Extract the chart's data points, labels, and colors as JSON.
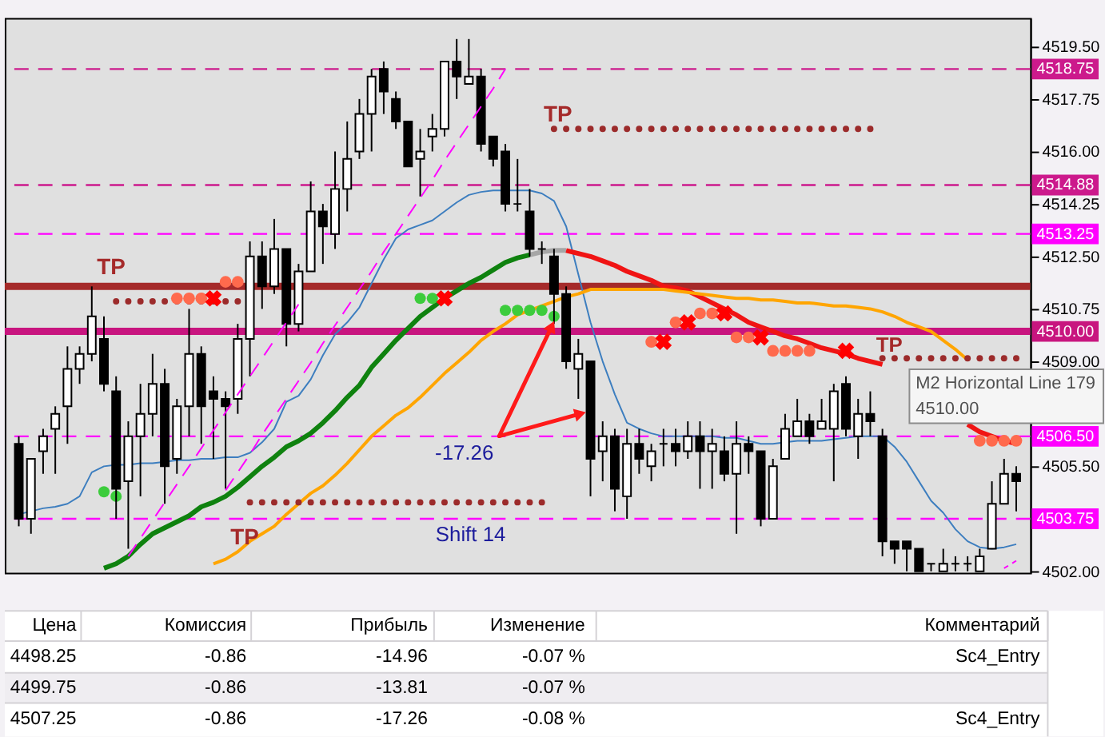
{
  "chart_data": [
    {
      "type": "candlestick",
      "categories": [
        null,
        null,
        null,
        null,
        null,
        null,
        null,
        null,
        null,
        null,
        null,
        null,
        null,
        null,
        null,
        null,
        null,
        null,
        null,
        null,
        null,
        null,
        null,
        null,
        null,
        null,
        null,
        null,
        null,
        null,
        null,
        null,
        null,
        null,
        null,
        null,
        null,
        null,
        null,
        null,
        null,
        null,
        null,
        null,
        null,
        null,
        null,
        null,
        null,
        null,
        null,
        null,
        null,
        null,
        null,
        null,
        null,
        null,
        null,
        null,
        null,
        null,
        null,
        null,
        null,
        null,
        null,
        null,
        null,
        null,
        null,
        null,
        null,
        null,
        null,
        null,
        null,
        null,
        null,
        null,
        null,
        null,
        null
      ],
      "ohlc": [
        [
          4506.25,
          4506.5,
          4503.5,
          4503.75
        ],
        [
          4503.75,
          4505.75,
          4503.25,
          4505.75
        ],
        [
          4506.0,
          4506.75,
          4505.25,
          4506.5
        ],
        [
          4506.75,
          4507.5,
          4505.25,
          4507.25
        ],
        [
          4507.5,
          4509.5,
          4506.25,
          4508.75
        ],
        [
          4508.75,
          4509.5,
          4508.25,
          4509.25
        ],
        [
          4509.25,
          4511.5,
          4509.0,
          4510.5
        ],
        [
          4509.75,
          4510.5,
          4508.0,
          4508.25
        ],
        [
          4508.0,
          4508.5,
          4503.75,
          4504.75
        ],
        [
          4505.0,
          4507.0,
          4502.75,
          4506.5
        ],
        [
          4506.5,
          4508.25,
          4504.5,
          4507.25
        ],
        [
          4507.25,
          4509.25,
          4506.5,
          4508.25
        ],
        [
          4508.25,
          4508.75,
          4504.25,
          4505.5
        ],
        [
          4505.75,
          4507.75,
          4505.25,
          4507.5
        ],
        [
          4507.5,
          4510.75,
          4506.5,
          4509.25
        ],
        [
          4509.25,
          4509.5,
          4506.25,
          4507.5
        ],
        [
          4508.0,
          4508.5,
          4505.75,
          4507.75
        ],
        [
          4507.75,
          4508.0,
          4504.75,
          4507.5
        ],
        [
          4507.75,
          4510.25,
          4507.25,
          4509.75
        ],
        [
          4509.75,
          4513.0,
          4508.5,
          4512.5
        ],
        [
          4512.5,
          4513.0,
          4510.75,
          4511.5
        ],
        [
          4511.5,
          4513.75,
          4511.25,
          4512.75
        ],
        [
          4512.75,
          4512.75,
          4509.5,
          4510.25
        ],
        [
          4510.25,
          4512.25,
          4510.0,
          4512.0
        ],
        [
          4512.0,
          4515.0,
          4512.0,
          4514.0
        ],
        [
          4514.0,
          4514.25,
          4512.25,
          4513.5
        ],
        [
          4513.25,
          4516.0,
          4512.75,
          4514.75
        ],
        [
          4514.75,
          4517.0,
          4514.0,
          4515.75
        ],
        [
          4516.0,
          4517.75,
          4515.75,
          4517.25
        ],
        [
          4517.25,
          4518.75,
          4516.0,
          4518.5
        ],
        [
          4518.75,
          4519.0,
          4517.25,
          4518.0
        ],
        [
          4517.75,
          4518.0,
          4516.75,
          4517.0
        ],
        [
          4517.0,
          4517.0,
          4515.5,
          4515.5
        ],
        [
          4515.75,
          4516.75,
          4514.5,
          4516.0
        ],
        [
          4516.5,
          4517.25,
          4516.0,
          4516.75
        ],
        [
          4516.75,
          4519.0,
          4516.5,
          4519.0
        ],
        [
          4519.0,
          4519.75,
          4517.75,
          4518.5
        ],
        [
          4518.25,
          4519.75,
          4518.25,
          4518.5
        ],
        [
          4518.5,
          4518.75,
          4516.0,
          4516.25
        ],
        [
          4516.5,
          4516.5,
          4515.5,
          4515.75
        ],
        [
          4516.0,
          4516.25,
          4514.0,
          4514.25
        ],
        [
          4514.25,
          4515.75,
          4514.0,
          4514.25
        ],
        [
          4514.0,
          4514.75,
          4512.5,
          4512.75
        ],
        [
          4512.75,
          4513.0,
          4512.25,
          4512.75
        ],
        [
          4512.5,
          4512.75,
          4510.25,
          4511.25
        ],
        [
          4511.25,
          4511.5,
          4508.75,
          4509.0
        ],
        [
          4508.75,
          4509.75,
          4507.75,
          4509.25
        ],
        [
          4509.0,
          4509.0,
          4504.5,
          4505.75
        ],
        [
          4506.0,
          4507.0,
          4505.0,
          4506.5
        ],
        [
          4506.5,
          4506.75,
          4504.0,
          4504.75
        ],
        [
          4504.5,
          4506.75,
          4503.75,
          4506.25
        ],
        [
          4506.25,
          4506.75,
          4505.25,
          4505.75
        ],
        [
          4505.5,
          4506.25,
          4505.0,
          4506.0
        ],
        [
          4506.25,
          4506.75,
          4505.5,
          4506.25
        ],
        [
          4506.25,
          4506.75,
          4505.5,
          4506.0
        ],
        [
          4506.0,
          4507.0,
          4505.75,
          4506.5
        ],
        [
          4506.5,
          4507.0,
          4504.75,
          4506.0
        ],
        [
          4506.0,
          4506.75,
          4504.75,
          4506.25
        ],
        [
          4506.0,
          4506.5,
          4505.0,
          4505.25
        ],
        [
          4505.25,
          4507.0,
          4503.25,
          4506.25
        ],
        [
          4506.25,
          4506.5,
          4505.25,
          4506.0
        ],
        [
          4506.0,
          4506.0,
          4503.5,
          4503.75
        ],
        [
          4503.75,
          4505.75,
          4503.75,
          4505.5
        ],
        [
          4505.75,
          4507.25,
          4505.75,
          4506.75
        ],
        [
          4506.5,
          4507.75,
          4506.5,
          4507.0
        ],
        [
          4507.0,
          4507.25,
          4506.25,
          4506.5
        ],
        [
          4506.75,
          4507.75,
          4506.75,
          4507.0
        ],
        [
          4506.75,
          4508.25,
          4505.0,
          4508.0
        ],
        [
          4508.25,
          4508.5,
          4506.5,
          4506.75
        ],
        [
          4506.5,
          4507.75,
          4505.75,
          4507.25
        ],
        [
          4507.25,
          4508.0,
          4506.5,
          4507.0
        ],
        [
          4506.5,
          4506.75,
          4502.5,
          4503.0
        ],
        [
          4503.0,
          4503.0,
          4502.25,
          4502.75
        ],
        [
          4503.0,
          4503.0,
          4502.0,
          4502.75
        ],
        [
          4502.75,
          4502.75,
          4502.0,
          4502.0
        ],
        [
          4502.25,
          4502.25,
          4502.0,
          4502.25
        ],
        [
          4502.0,
          4502.75,
          4502.0,
          4502.25
        ],
        [
          4502.25,
          4502.5,
          4502.0,
          4502.25
        ],
        [
          4502.25,
          4502.5,
          4502.0,
          4502.25
        ],
        [
          4502.0,
          4502.75,
          4502.0,
          4502.5
        ],
        [
          4502.75,
          4505.0,
          4502.75,
          4504.25
        ],
        [
          4504.25,
          4505.75,
          4504.25,
          4505.25
        ],
        [
          4505.25,
          4505.5,
          4504.0,
          4505.0
        ]
      ],
      "colors": [
        "#000000",
        "#ffffff",
        "#ffffff",
        "#ffffff",
        "#ffffff",
        "#ffffff",
        "#ffffff",
        "#000000",
        "#000000",
        "#ffffff",
        "#ffffff",
        "#ffffff",
        "#000000",
        "#ffffff",
        "#ffffff",
        "#000000",
        "#000000",
        "#000000",
        "#ffffff",
        "#ffffff",
        "#000000",
        "#ffffff",
        "#000000",
        "#ffffff",
        "#ffffff",
        "#000000",
        "#ffffff",
        "#ffffff",
        "#ffffff",
        "#ffffff",
        "#000000",
        "#000000",
        "#000000",
        "#ffffff",
        "#ffffff",
        "#ffffff",
        "#000000",
        "#ffffff",
        "#000000",
        "#000000",
        "#000000",
        "#000000",
        "#000000",
        "#000000",
        "#000000",
        "#000000",
        "#ffffff",
        "#000000",
        "#ffffff",
        "#000000",
        "#ffffff",
        "#000000",
        "#ffffff",
        "#000000",
        "#000000",
        "#ffffff",
        "#000000",
        "#ffffff",
        "#000000",
        "#ffffff",
        "#000000",
        "#000000",
        "#ffffff",
        "#ffffff",
        "#ffffff",
        "#000000",
        "#ffffff",
        "#ffffff",
        "#000000",
        "#ffffff",
        "#000000",
        "#000000",
        "#000000",
        "#000000",
        "#000000",
        "#000000",
        "#ffffff",
        "#000000",
        "#000000",
        "#ffffff",
        "#ffffff",
        "#ffffff",
        "#000000"
      ],
      "series": [
        {
          "type": "line",
          "color": "#3d7ebf",
          "values": [
            4503.9,
            4504.0,
            4504.1,
            4504.15,
            4504.25,
            4504.5,
            4505.3,
            4505.5,
            4505.55,
            4505.55,
            4505.6,
            4505.6,
            4505.65,
            4505.7,
            4505.7,
            4505.75,
            4505.75,
            4505.8,
            4505.8,
            4505.95,
            4506.3,
            4506.75,
            4507.65,
            4507.85,
            4508.4,
            4509.2,
            4509.9,
            4510.3,
            4510.8,
            4511.6,
            4512.4,
            4513.1,
            4513.4,
            4513.55,
            4513.7,
            4514.0,
            4514.3,
            4514.55,
            4514.65,
            4514.7,
            4514.7,
            4514.7,
            4514.7,
            4514.6,
            4514.35,
            4513.5,
            4511.9,
            4510.3,
            4509.0,
            4507.9,
            4506.95,
            4506.75,
            4506.6,
            4506.5,
            4506.5,
            4506.5,
            4506.5,
            4506.5,
            4506.45,
            4506.45,
            4506.35,
            4506.25,
            4506.25,
            4506.3,
            4506.35,
            4506.35,
            4506.35,
            4506.4,
            4506.45,
            4506.5,
            4506.5,
            4506.5,
            4506.15,
            4505.65,
            4505.0,
            4504.35,
            4503.95,
            4503.4,
            4503.0,
            4502.8,
            4502.75,
            4502.8,
            4502.9
          ]
        },
        {
          "type": "line",
          "color": "#0f820f",
          "values": [
            null,
            null,
            null,
            null,
            null,
            null,
            null,
            4502.1,
            4502.25,
            4502.5,
            4502.9,
            4503.25,
            4503.45,
            4503.65,
            4503.85,
            4504.15,
            4504.3,
            4504.5,
            4504.8,
            4505.15,
            4505.5,
            4505.8,
            4506.15,
            4506.35,
            4506.6,
            4506.95,
            4507.35,
            4507.8,
            4508.2,
            4508.8,
            4509.25,
            4509.7,
            4510.1,
            4510.5,
            4510.8,
            4511.1,
            4511.35,
            4511.6,
            4511.8,
            4512.05,
            4512.3,
            4512.45,
            4512.55,
            null,
            null,
            null,
            null,
            null,
            null,
            null,
            null,
            null,
            null,
            null,
            null,
            null,
            null,
            null,
            null,
            null,
            null,
            null,
            null,
            null,
            null,
            null,
            null,
            null,
            null,
            null,
            null,
            null,
            null,
            null,
            null,
            null,
            null,
            null,
            null,
            null,
            null,
            null,
            null
          ]
        },
        {
          "type": "line",
          "color": "#a6a6a6",
          "values": [
            null,
            null,
            null,
            null,
            null,
            null,
            null,
            null,
            null,
            null,
            null,
            null,
            null,
            null,
            null,
            null,
            null,
            null,
            null,
            null,
            null,
            null,
            null,
            null,
            null,
            null,
            null,
            null,
            null,
            null,
            null,
            null,
            null,
            null,
            null,
            null,
            null,
            null,
            null,
            null,
            null,
            null,
            4512.55,
            4512.65,
            4512.7,
            4512.7,
            null,
            null,
            null,
            null,
            null,
            null,
            null,
            null,
            null,
            null,
            null,
            null,
            null,
            null,
            null,
            null,
            null,
            null,
            null,
            null,
            null,
            null,
            null,
            null,
            null,
            null,
            null,
            null,
            null,
            null,
            null,
            null,
            null,
            null,
            null,
            null,
            null
          ]
        },
        {
          "type": "line",
          "color": "#f01414",
          "values": [
            null,
            null,
            null,
            null,
            null,
            null,
            null,
            null,
            null,
            null,
            null,
            null,
            null,
            null,
            null,
            null,
            null,
            null,
            null,
            null,
            null,
            null,
            null,
            null,
            null,
            null,
            null,
            null,
            null,
            null,
            null,
            null,
            null,
            null,
            null,
            null,
            null,
            null,
            null,
            null,
            null,
            null,
            null,
            null,
            null,
            4512.7,
            4512.6,
            4512.5,
            4512.35,
            4512.2,
            4512.0,
            4511.85,
            4511.7,
            4511.5,
            4511.45,
            4511.35,
            4511.15,
            4510.95,
            4510.75,
            4510.55,
            4510.3,
            4510.15,
            4510.0,
            4509.85,
            4509.75,
            4509.6,
            4509.45,
            4509.35,
            4509.25,
            4509.1,
            4509.0,
            4508.9,
            null,
            null,
            null,
            null,
            null,
            null,
            4506.9,
            4506.65,
            4506.5,
            4506.35,
            4506.25
          ]
        },
        {
          "type": "line",
          "color": "#ffa500",
          "values": [
            null,
            null,
            null,
            null,
            null,
            null,
            null,
            null,
            null,
            null,
            null,
            null,
            null,
            null,
            null,
            null,
            4502.25,
            4502.4,
            4502.65,
            4503.0,
            4503.25,
            4503.5,
            4503.9,
            4504.25,
            4504.6,
            4504.85,
            4505.2,
            4505.6,
            4506.05,
            4506.5,
            4506.85,
            4507.2,
            4507.45,
            4507.8,
            4508.2,
            4508.6,
            4508.95,
            4509.3,
            4509.7,
            4510.0,
            4510.25,
            4510.55,
            4510.7,
            4510.85,
            4511.0,
            4511.15,
            4511.25,
            4511.4,
            4511.4,
            4511.4,
            4511.4,
            4511.4,
            4511.4,
            4511.4,
            4511.35,
            4511.3,
            4511.25,
            4511.2,
            4511.15,
            4511.1,
            4511.1,
            4511.05,
            4511.05,
            4511.0,
            4510.95,
            4510.95,
            4510.9,
            4510.85,
            4510.85,
            4510.8,
            4510.75,
            4510.65,
            4510.5,
            4510.3,
            4510.15,
            4510.0,
            4509.7,
            4509.4,
            4509.05,
            null,
            null,
            null,
            null
          ]
        },
        {
          "type": "line",
          "color": "#ff00ff",
          "line_style": "dashed",
          "values": [
            null,
            null,
            null,
            null,
            null,
            null,
            null,
            null,
            null,
            4502.5,
            4503.1,
            4503.7,
            4504.3,
            4504.9,
            4505.5,
            4506.1,
            4506.7,
            4507.3,
            4507.9,
            4508.5,
            4509.1,
            4509.7,
            4510.3,
            4510.9,
            null,
            null,
            null,
            null,
            null,
            null,
            null,
            null,
            null,
            null,
            null,
            null,
            null,
            null,
            null,
            null,
            null,
            null,
            null,
            null,
            null,
            null,
            null,
            null,
            null,
            null,
            null,
            null,
            null,
            null,
            null,
            null,
            null,
            null,
            null,
            null,
            null,
            null,
            null,
            null,
            null,
            null,
            null,
            null,
            null,
            null,
            null,
            null,
            null,
            null,
            null,
            null,
            null,
            null,
            null,
            null,
            null,
            null,
            null
          ]
        },
        {
          "type": "line",
          "color": "#ff00ff",
          "line_style": "dashed",
          "values": [
            null,
            null,
            null,
            null,
            null,
            null,
            null,
            null,
            null,
            null,
            null,
            null,
            null,
            null,
            null,
            null,
            null,
            4504.7,
            4505.3,
            4505.9,
            4506.55,
            4507.15,
            4507.75,
            4508.35,
            4508.95,
            4509.6,
            4510.2,
            4510.8,
            4511.4,
            4512.0,
            4512.65,
            4513.25,
            4513.85,
            4514.45,
            4515.05,
            4515.7,
            4516.3,
            4516.9,
            4517.5,
            4518.1,
            4518.75,
            null,
            null,
            null,
            null,
            null,
            null,
            null,
            null,
            null,
            null,
            null,
            null,
            null,
            null,
            null,
            null,
            null,
            null,
            null,
            null,
            null,
            null,
            null,
            null,
            null,
            null,
            null,
            null,
            null,
            null,
            null,
            null,
            null,
            null,
            null,
            null,
            null,
            null,
            null,
            null,
            null,
            null
          ]
        },
        {
          "type": "line",
          "color": "#ff00ff",
          "line_style": "dashed",
          "values": [
            null,
            null,
            null,
            null,
            null,
            null,
            null,
            null,
            null,
            null,
            null,
            null,
            null,
            null,
            null,
            null,
            null,
            null,
            null,
            null,
            null,
            null,
            null,
            null,
            null,
            null,
            null,
            null,
            null,
            null,
            null,
            null,
            null,
            null,
            null,
            null,
            null,
            null,
            null,
            null,
            null,
            null,
            null,
            null,
            null,
            null,
            null,
            null,
            null,
            null,
            null,
            null,
            null,
            null,
            null,
            null,
            null,
            null,
            null,
            null,
            null,
            null,
            null,
            null,
            null,
            null,
            null,
            null,
            null,
            null,
            null,
            null,
            null,
            null,
            null,
            null,
            null,
            null,
            null,
            null,
            null,
            4502.1,
            4502.35
          ]
        },
        {
          "type": "scatter",
          "marker": "circle",
          "color": "#9c2b2b",
          "values": [
            null,
            null,
            null,
            null,
            null,
            null,
            null,
            null,
            4511.0,
            4511.0,
            4511.0,
            4511.0,
            4511.0,
            4511.0,
            4511.0,
            4511.0,
            4511.0,
            4511.0,
            4511.0,
            4504.3,
            4504.3,
            4504.3,
            4504.3,
            4504.3,
            4504.3,
            4504.3,
            4504.3,
            4504.3,
            4504.3,
            4504.3,
            4504.3,
            4504.3,
            4504.3,
            4504.3,
            4504.3,
            4504.3,
            4504.3,
            4504.3,
            4504.3,
            4504.3,
            4504.3,
            4504.3,
            4504.3,
            4504.3,
            4516.75,
            4516.75,
            4516.75,
            4516.75,
            4516.75,
            4516.75,
            4516.75,
            4516.75,
            4516.75,
            4516.75,
            4516.75,
            4516.75,
            4516.75,
            4516.75,
            4516.75,
            4516.75,
            4516.75,
            4516.75,
            4516.75,
            4516.75,
            4516.75,
            4516.75,
            4516.75,
            4516.75,
            4516.75,
            4516.75,
            4516.75,
            4509.1,
            4509.1,
            4509.1,
            4509.1,
            4509.1,
            4509.1,
            4509.1,
            4509.1,
            4509.1,
            4509.1,
            4509.1,
            4509.1
          ]
        },
        {
          "type": "scatter",
          "marker": "circle",
          "color": "#3ccc3c",
          "values": [
            null,
            null,
            null,
            null,
            null,
            null,
            null,
            4504.65,
            4504.5,
            null,
            null,
            null,
            null,
            null,
            null,
            null,
            null,
            null,
            null,
            null,
            null,
            null,
            null,
            null,
            null,
            null,
            null,
            null,
            null,
            null,
            null,
            null,
            null,
            4511.1,
            4511.1,
            null,
            null,
            null,
            null,
            null,
            4510.7,
            4510.7,
            4510.7,
            4510.7,
            4510.5,
            null,
            null,
            null,
            null,
            null,
            null,
            null,
            null,
            null,
            null,
            null,
            null,
            null,
            null,
            null,
            null,
            null,
            null,
            null,
            null,
            null,
            null,
            null,
            null,
            null,
            null,
            null,
            null,
            null,
            null,
            null,
            null,
            null,
            null,
            null,
            null,
            null,
            null
          ]
        },
        {
          "type": "scatter",
          "marker": "circle",
          "color": "#ff6a4d",
          "values": [
            null,
            null,
            null,
            null,
            null,
            null,
            null,
            null,
            null,
            null,
            null,
            null,
            null,
            4511.1,
            4511.1,
            4511.1,
            null,
            4511.65,
            4511.65,
            null,
            null,
            null,
            null,
            null,
            null,
            null,
            null,
            null,
            null,
            null,
            null,
            null,
            null,
            null,
            null,
            null,
            null,
            null,
            null,
            null,
            null,
            null,
            null,
            null,
            null,
            null,
            null,
            null,
            null,
            null,
            null,
            null,
            4509.65,
            null,
            4510.3,
            null,
            4510.6,
            4510.6,
            null,
            4509.8,
            4509.8,
            null,
            4509.35,
            4509.35,
            4509.35,
            4509.35,
            null,
            null,
            null,
            null,
            null,
            null,
            null,
            null,
            null,
            null,
            null,
            null,
            null,
            4506.35,
            4506.35,
            4506.35,
            4506.35
          ]
        },
        {
          "type": "scatter",
          "marker": "cross",
          "color": "#ff0000",
          "values": [
            null,
            null,
            null,
            null,
            null,
            null,
            null,
            null,
            null,
            null,
            null,
            null,
            null,
            null,
            null,
            null,
            4511.1,
            null,
            null,
            null,
            null,
            null,
            null,
            null,
            null,
            null,
            null,
            null,
            null,
            null,
            null,
            null,
            null,
            null,
            null,
            4511.1,
            null,
            null,
            null,
            null,
            null,
            null,
            null,
            null,
            null,
            null,
            null,
            null,
            null,
            null,
            null,
            null,
            null,
            4509.65,
            null,
            4510.3,
            null,
            null,
            4510.6,
            null,
            null,
            4509.8,
            null,
            null,
            null,
            null,
            null,
            null,
            4509.35,
            null,
            null,
            null,
            null,
            null,
            null,
            null,
            null,
            null,
            null,
            null,
            null,
            null,
            null
          ]
        }
      ],
      "ylim": [
        4501.95,
        4520.45
      ],
      "yticks": [
        {
          "value": 4519.5,
          "label": "4519.50"
        },
        {
          "value": 4517.75,
          "label": "4517.75"
        },
        {
          "value": 4516.0,
          "label": "4516.00"
        },
        {
          "value": 4514.25,
          "label": "4514.25"
        },
        {
          "value": 4512.5,
          "label": "4512.50"
        },
        {
          "value": 4510.75,
          "label": "4510.75"
        },
        {
          "value": 4509.0,
          "label": "4509.00"
        },
        {
          "value": 4505.5,
          "label": "4505.50"
        },
        {
          "value": 4502.0,
          "label": "4502.00"
        }
      ],
      "ref_lines": [
        {
          "axis": "y",
          "value": 4518.75,
          "label": "4518.75",
          "color": "#cc1a8c",
          "line_style": "dashed"
        },
        {
          "axis": "y",
          "value": 4514.88,
          "label": "4514.88",
          "color": "#cc1a8c",
          "line_style": "dashed"
        },
        {
          "axis": "y",
          "value": 4513.25,
          "label": "4513.25",
          "color": "#ff00ff",
          "line_style": "dashed"
        },
        {
          "axis": "y",
          "value": 4511.5,
          "color": "#a52a2a",
          "line_style": "solid"
        },
        {
          "axis": "y",
          "value": 4510.0,
          "label": "4510.00",
          "color": "#c8157f",
          "line_style": "solid"
        },
        {
          "axis": "y",
          "value": 4506.5,
          "label": "4506.50",
          "color": "#ff00ff",
          "line_style": "dashed"
        },
        {
          "axis": "y",
          "value": 4503.75,
          "label": "4503.75",
          "color": "#ff00ff",
          "line_style": "dashed"
        }
      ],
      "annotations": [
        "TP",
        "TP",
        "TP",
        "TP",
        "-17.26",
        "Shift 14",
        "M2 Horizontal Line 179",
        "4510.00"
      ],
      "tick_labels": "y"
    },
    {
      "type": "other",
      "categories": [
        "Цена",
        "Комиссия",
        "Прибыль",
        "Изменение",
        "Комментарий"
      ],
      "cell_labels": [
        [
          "4498.25",
          "-0.86",
          "-14.96",
          "-0.07 %",
          "Sc4_Entry"
        ],
        [
          "4499.75",
          "-0.86",
          "-13.81",
          "-0.07 %",
          null
        ],
        [
          "4507.25",
          "-0.86",
          "-17.26",
          "-0.08 %",
          "Sc4_Entry"
        ]
      ]
    }
  ]
}
